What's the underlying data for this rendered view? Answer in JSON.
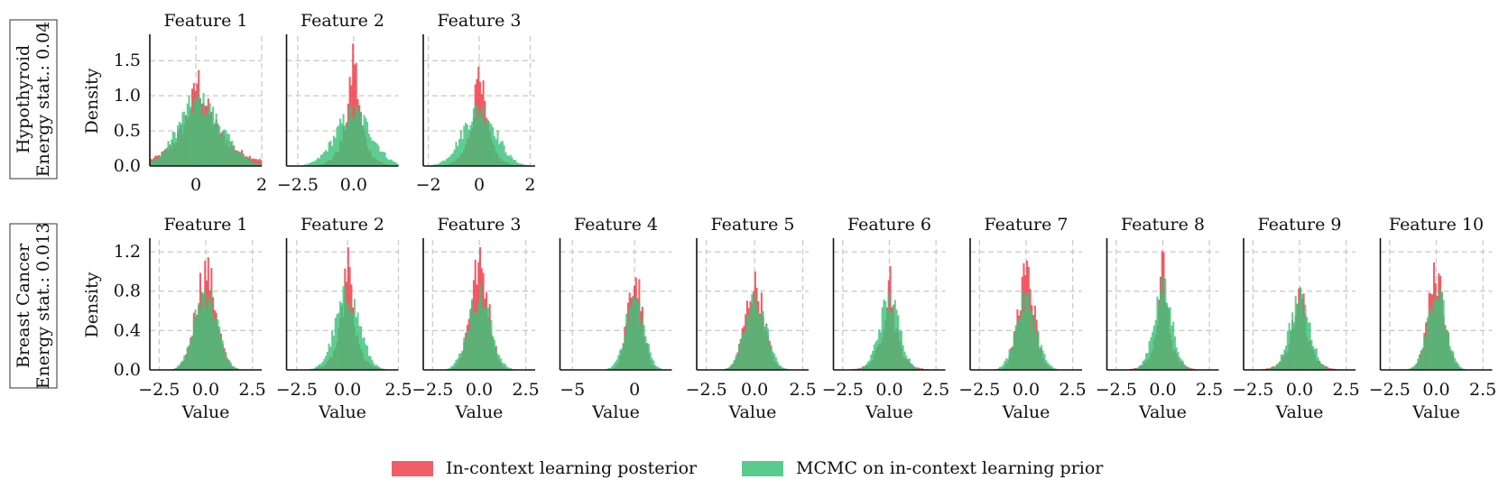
{
  "colors": {
    "icl": "#f0424e",
    "mcmc": "#3dc27a",
    "grid": "#c8c8c8",
    "axis": "#111111"
  },
  "legend": {
    "icl_label": "In-context learning posterior",
    "mcmc_label": "MCMC on in-context learning prior"
  },
  "chart_data": [
    {
      "type": "histogram",
      "dataset": "Hypothyroid",
      "row_label_lines": [
        "Hypothyroid",
        "Energy stat.: 0.04"
      ],
      "ylabel": "Density",
      "xlabel": "",
      "yticks": [
        0.0,
        0.5,
        1.0,
        1.5
      ],
      "ytick_labels": [
        "0.0",
        "0.5",
        "1.0",
        "1.5"
      ],
      "ylim": [
        0,
        1.85
      ],
      "panels": [
        {
          "title": "Feature 1",
          "xlim": [
            -1.4,
            2.0
          ],
          "xticks": [
            0,
            2
          ],
          "xtick_labels": [
            "0",
            "2"
          ],
          "series": [
            {
              "name": "In-context learning posterior",
              "shape": "laplace",
              "center": 0.05,
              "peak": 1.25,
              "scale": 0.55,
              "skew": 1.3
            },
            {
              "name": "MCMC on in-context learning prior",
              "shape": "gauss",
              "center": 0.05,
              "peak": 0.9,
              "scale": 0.6,
              "skew": 1.2
            }
          ]
        },
        {
          "title": "Feature 2",
          "xlim": [
            -3.0,
            2.0
          ],
          "xticks": [
            -2.5,
            0.0
          ],
          "xtick_labels": [
            "−2.5",
            "0.0"
          ],
          "series": [
            {
              "name": "In-context learning posterior",
              "shape": "laplace",
              "center": 0.0,
              "peak": 1.75,
              "scale": 0.35,
              "skew": 1.0
            },
            {
              "name": "MCMC on in-context learning prior",
              "shape": "gauss",
              "center": 0.0,
              "peak": 0.75,
              "scale": 0.8,
              "skew": 1.0
            }
          ]
        },
        {
          "title": "Feature 3",
          "xlim": [
            -2.2,
            2.2
          ],
          "xticks": [
            -2,
            0,
            2
          ],
          "xtick_labels": [
            "−2",
            "0",
            "2"
          ],
          "series": [
            {
              "name": "In-context learning posterior",
              "shape": "laplace",
              "center": 0.0,
              "peak": 1.7,
              "scale": 0.3,
              "skew": 1.0
            },
            {
              "name": "MCMC on in-context learning prior",
              "shape": "gauss",
              "center": 0.0,
              "peak": 0.8,
              "scale": 0.65,
              "skew": 1.0
            }
          ]
        }
      ]
    },
    {
      "type": "histogram",
      "dataset": "Breast Cancer",
      "row_label_lines": [
        "Breast Cancer",
        "Energy stat.: 0.013"
      ],
      "ylabel": "Density",
      "xlabel": "Value",
      "yticks": [
        0.0,
        0.4,
        0.8,
        1.2
      ],
      "ytick_labels": [
        "0.0",
        "0.4",
        "0.8",
        "1.2"
      ],
      "ylim": [
        0,
        1.32
      ],
      "panels": [
        {
          "title": "Feature 1",
          "xlim": [
            -3.0,
            3.0
          ],
          "xticks": [
            -2.5,
            0.0,
            2.5
          ],
          "xtick_labels": [
            "−2.5",
            "0.0",
            "2.5"
          ],
          "series": [
            {
              "name": "In-context learning posterior",
              "shape": "gauss",
              "center": 0.0,
              "peak": 1.0,
              "scale": 0.55,
              "skew": 1.0
            },
            {
              "name": "MCMC on in-context learning prior",
              "shape": "gauss",
              "center": 0.0,
              "peak": 0.8,
              "scale": 0.6,
              "skew": 1.0
            }
          ]
        },
        {
          "title": "Feature 2",
          "xlim": [
            -3.0,
            2.5
          ],
          "xticks": [
            -2.5,
            0.0,
            2.5
          ],
          "xtick_labels": [
            "−2.5",
            "0.0",
            "2.5"
          ],
          "series": [
            {
              "name": "In-context learning posterior",
              "shape": "laplace",
              "center": 0.0,
              "peak": 1.25,
              "scale": 0.35,
              "skew": 1.0
            },
            {
              "name": "MCMC on in-context learning prior",
              "shape": "gauss",
              "center": 0.0,
              "peak": 0.75,
              "scale": 0.6,
              "skew": 1.0
            }
          ]
        },
        {
          "title": "Feature 3",
          "xlim": [
            -3.0,
            3.0
          ],
          "xticks": [
            -2.5,
            0.0,
            2.5
          ],
          "xtick_labels": [
            "−2.5",
            "0.0",
            "2.5"
          ],
          "series": [
            {
              "name": "In-context learning posterior",
              "shape": "gauss",
              "center": 0.0,
              "peak": 1.05,
              "scale": 0.5,
              "skew": 1.0
            },
            {
              "name": "MCMC on in-context learning prior",
              "shape": "gauss",
              "center": 0.0,
              "peak": 0.75,
              "scale": 0.6,
              "skew": 1.0
            }
          ]
        },
        {
          "title": "Feature 4",
          "xlim": [
            -6.0,
            3.0
          ],
          "xticks": [
            -5,
            0
          ],
          "xtick_labels": [
            "−5",
            "0"
          ],
          "series": [
            {
              "name": "In-context learning posterior",
              "shape": "gauss",
              "center": 0.0,
              "peak": 0.95,
              "scale": 0.6,
              "skew": 1.0
            },
            {
              "name": "MCMC on in-context learning prior",
              "shape": "gauss",
              "center": 0.0,
              "peak": 0.7,
              "scale": 0.75,
              "skew": 1.0
            }
          ]
        },
        {
          "title": "Feature 5",
          "xlim": [
            -3.0,
            2.8
          ],
          "xticks": [
            -2.5,
            0.0,
            2.5
          ],
          "xtick_labels": [
            "−2.5",
            "0.0",
            "2.5"
          ],
          "series": [
            {
              "name": "In-context learning posterior",
              "shape": "gauss",
              "center": 0.0,
              "peak": 0.85,
              "scale": 0.5,
              "skew": 1.0
            },
            {
              "name": "MCMC on in-context learning prior",
              "shape": "gauss",
              "center": 0.05,
              "peak": 0.7,
              "scale": 0.55,
              "skew": 1.0
            }
          ]
        },
        {
          "title": "Feature 6",
          "xlim": [
            -3.0,
            3.0
          ],
          "xticks": [
            -2.5,
            0.0,
            2.5
          ],
          "xtick_labels": [
            "−2.5",
            "0.0",
            "2.5"
          ],
          "series": [
            {
              "name": "In-context learning posterior",
              "shape": "laplace",
              "center": 0.0,
              "peak": 1.05,
              "scale": 0.4,
              "skew": 1.0
            },
            {
              "name": "MCMC on in-context learning prior",
              "shape": "gauss",
              "center": 0.0,
              "peak": 0.7,
              "scale": 0.55,
              "skew": 1.0
            }
          ]
        },
        {
          "title": "Feature 7",
          "xlim": [
            -3.0,
            3.0
          ],
          "xticks": [
            -2.5,
            0.0,
            2.5
          ],
          "xtick_labels": [
            "−2.5",
            "0.0",
            "2.5"
          ],
          "series": [
            {
              "name": "In-context learning posterior",
              "shape": "gauss",
              "center": 0.0,
              "peak": 0.95,
              "scale": 0.45,
              "skew": 1.0
            },
            {
              "name": "MCMC on in-context learning prior",
              "shape": "gauss",
              "center": 0.0,
              "peak": 0.7,
              "scale": 0.55,
              "skew": 1.0
            }
          ]
        },
        {
          "title": "Feature 8",
          "xlim": [
            -3.0,
            3.0
          ],
          "xticks": [
            -2.5,
            0.0,
            2.5
          ],
          "xtick_labels": [
            "−2.5",
            "0.0",
            "2.5"
          ],
          "series": [
            {
              "name": "In-context learning posterior",
              "shape": "laplace",
              "center": 0.0,
              "peak": 1.2,
              "scale": 0.35,
              "skew": 1.0
            },
            {
              "name": "MCMC on in-context learning prior",
              "shape": "gauss",
              "center": 0.0,
              "peak": 0.8,
              "scale": 0.5,
              "skew": 1.0
            }
          ]
        },
        {
          "title": "Feature 9",
          "xlim": [
            -3.0,
            3.0
          ],
          "xticks": [
            -2.5,
            0.0,
            2.5
          ],
          "xtick_labels": [
            "−2.5",
            "0.0",
            "2.5"
          ],
          "series": [
            {
              "name": "In-context learning posterior",
              "shape": "laplace",
              "center": 0.0,
              "peak": 1.1,
              "scale": 0.4,
              "skew": 1.0
            },
            {
              "name": "MCMC on in-context learning prior",
              "shape": "gauss",
              "center": 0.0,
              "peak": 0.7,
              "scale": 0.55,
              "skew": 1.0
            }
          ]
        },
        {
          "title": "Feature 10",
          "xlim": [
            -3.0,
            3.0
          ],
          "xticks": [
            -2.5,
            0.0,
            2.5
          ],
          "xtick_labels": [
            "−2.5",
            "0.0",
            "2.5"
          ],
          "series": [
            {
              "name": "In-context learning posterior",
              "shape": "gauss",
              "center": 0.0,
              "peak": 0.95,
              "scale": 0.45,
              "skew": 1.0
            },
            {
              "name": "MCMC on in-context learning prior",
              "shape": "gauss",
              "center": 0.0,
              "peak": 0.8,
              "scale": 0.5,
              "skew": 1.0
            }
          ]
        }
      ]
    }
  ]
}
